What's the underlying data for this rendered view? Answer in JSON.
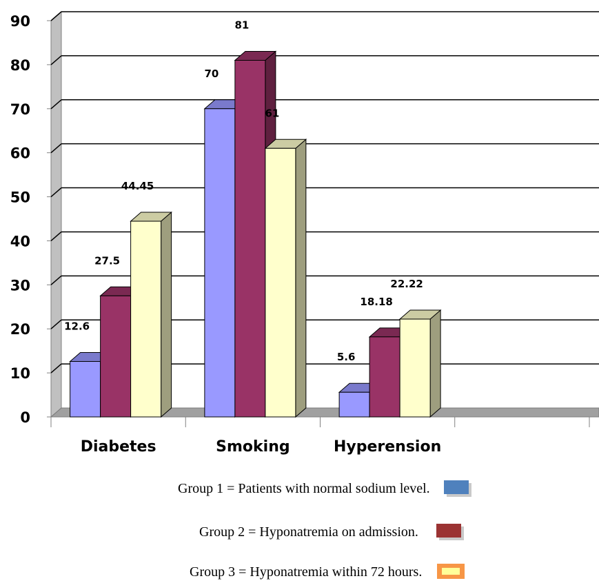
{
  "chart_data": {
    "type": "bar",
    "categories": [
      "Diabetes",
      "Smoking",
      "Hyperension"
    ],
    "series": [
      {
        "name": "Group 1 = Patients with normal sodium level.",
        "values": [
          12.6,
          70,
          5.6
        ],
        "color": "#9999ff"
      },
      {
        "name": "Group 2 = Hyponatremia on admission.",
        "values": [
          27.5,
          81,
          18.18
        ],
        "color": "#993366"
      },
      {
        "name": "Group 3 = Hyponatremia within 72 hours.",
        "values": [
          44.45,
          61,
          22.22
        ],
        "color": "#ffffcc"
      }
    ],
    "data_labels": [
      [
        "12.6",
        "27.5",
        "44.45"
      ],
      [
        "70",
        "81",
        "61"
      ],
      [
        "5.6",
        "18.18",
        "22.22"
      ]
    ],
    "ylim": [
      0,
      90
    ],
    "yticks": [
      "0",
      "10",
      "20",
      "30",
      "40",
      "50",
      "60",
      "70",
      "80",
      "90"
    ],
    "grid": true,
    "style": "3d-clustered-bar",
    "legend_position": "bottom"
  },
  "legend": {
    "items": [
      {
        "label": "Group 1 = Patients with normal sodium level.",
        "swatch_color": "#4f81bd",
        "style": "solid"
      },
      {
        "label": "Group 2 = Hyponatremia on admission.",
        "swatch_color": "#9b3333",
        "style": "solid"
      },
      {
        "label": "Group 3 = Hyponatremia within 72 hours.",
        "swatch_color": "#f79646",
        "inner_color": "#ffff99",
        "style": "framed"
      }
    ]
  }
}
